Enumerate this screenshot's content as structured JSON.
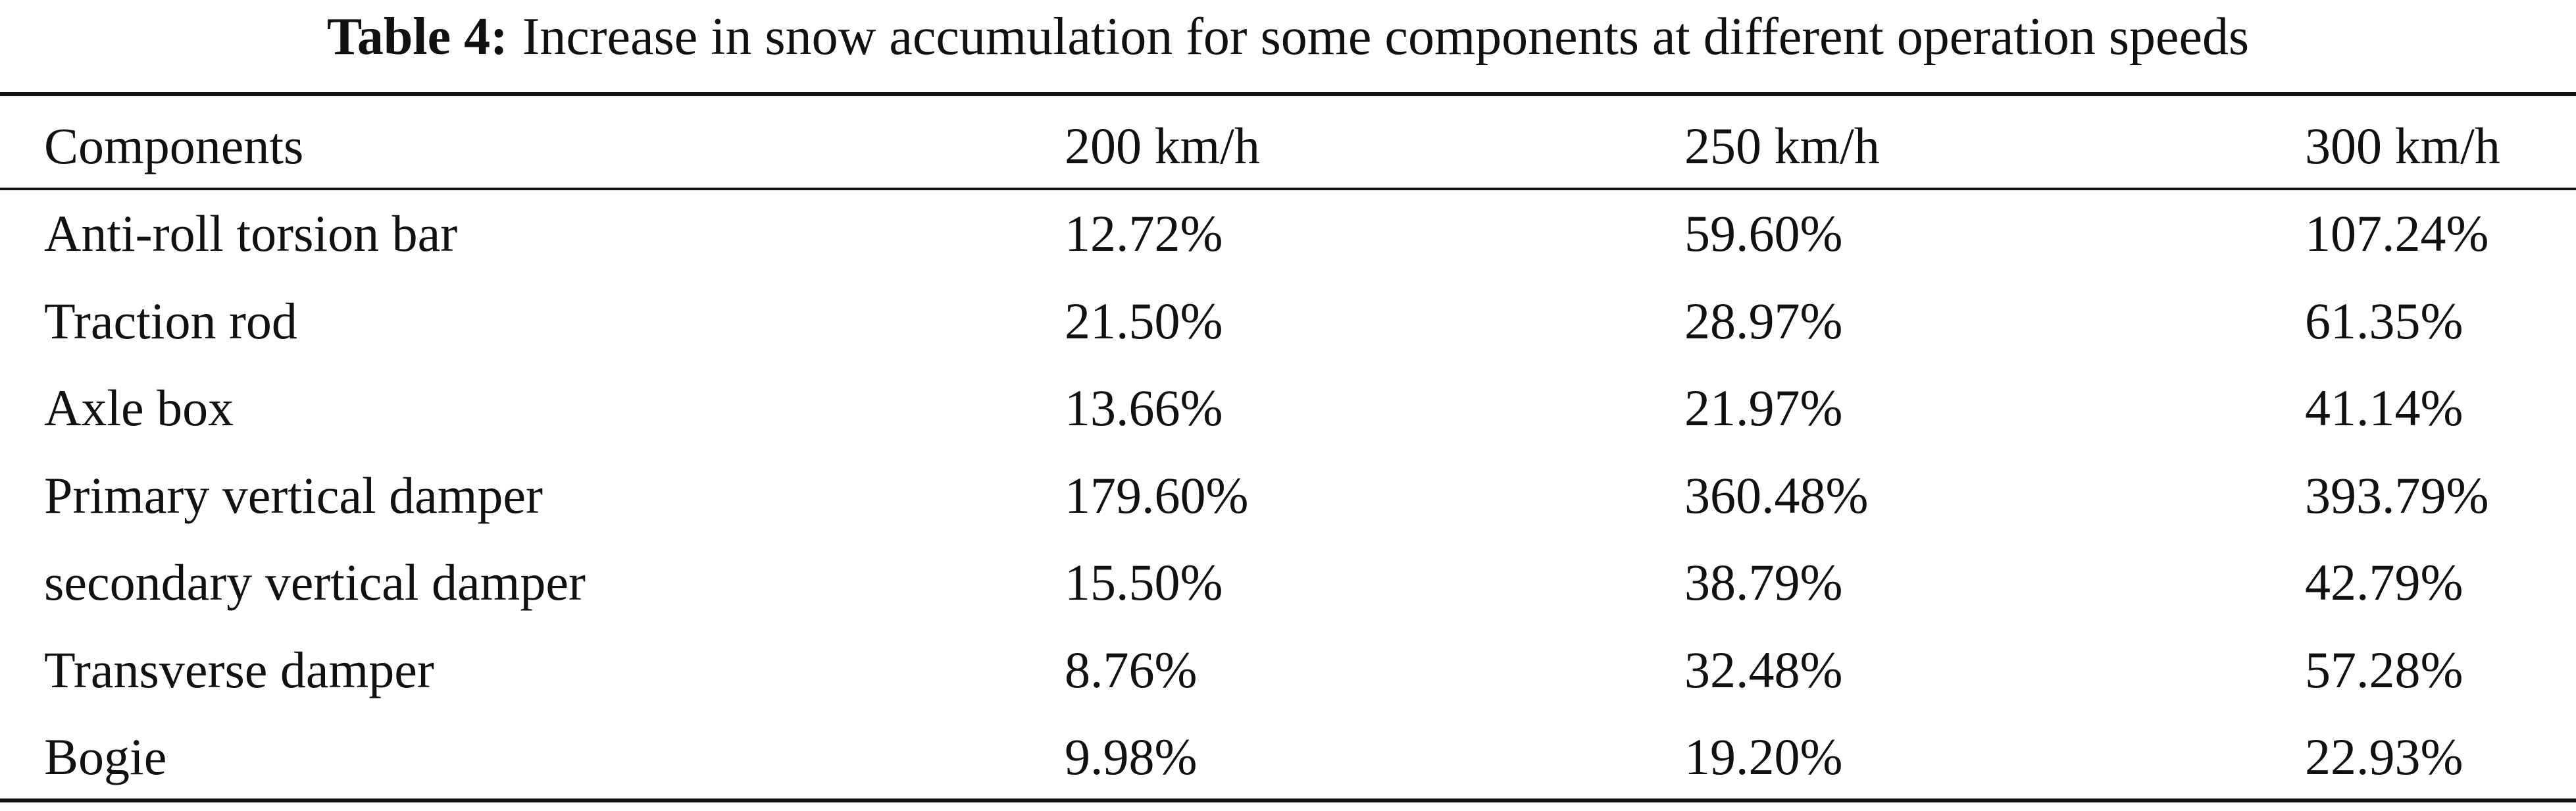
{
  "table": {
    "caption": {
      "label": "Table 4:",
      "text": "Increase in snow accumulation for some components at different operation speeds"
    },
    "header": [
      "Components",
      "200 km/h",
      "250 km/h",
      "300 km/h"
    ],
    "rows": [
      [
        "Anti-roll torsion bar",
        "12.72%",
        "59.60%",
        "107.24%"
      ],
      [
        "Traction rod",
        "21.50%",
        "28.97%",
        "61.35%"
      ],
      [
        "Axle box",
        "13.66%",
        "21.97%",
        "41.14%"
      ],
      [
        "Primary vertical damper",
        "179.60%",
        "360.48%",
        "393.79%"
      ],
      [
        "secondary vertical damper",
        "15.50%",
        "38.79%",
        "42.79%"
      ],
      [
        "Transverse damper",
        "8.76%",
        "32.48%",
        "57.28%"
      ],
      [
        "Bogie",
        "9.98%",
        "19.20%",
        "22.93%"
      ]
    ]
  }
}
